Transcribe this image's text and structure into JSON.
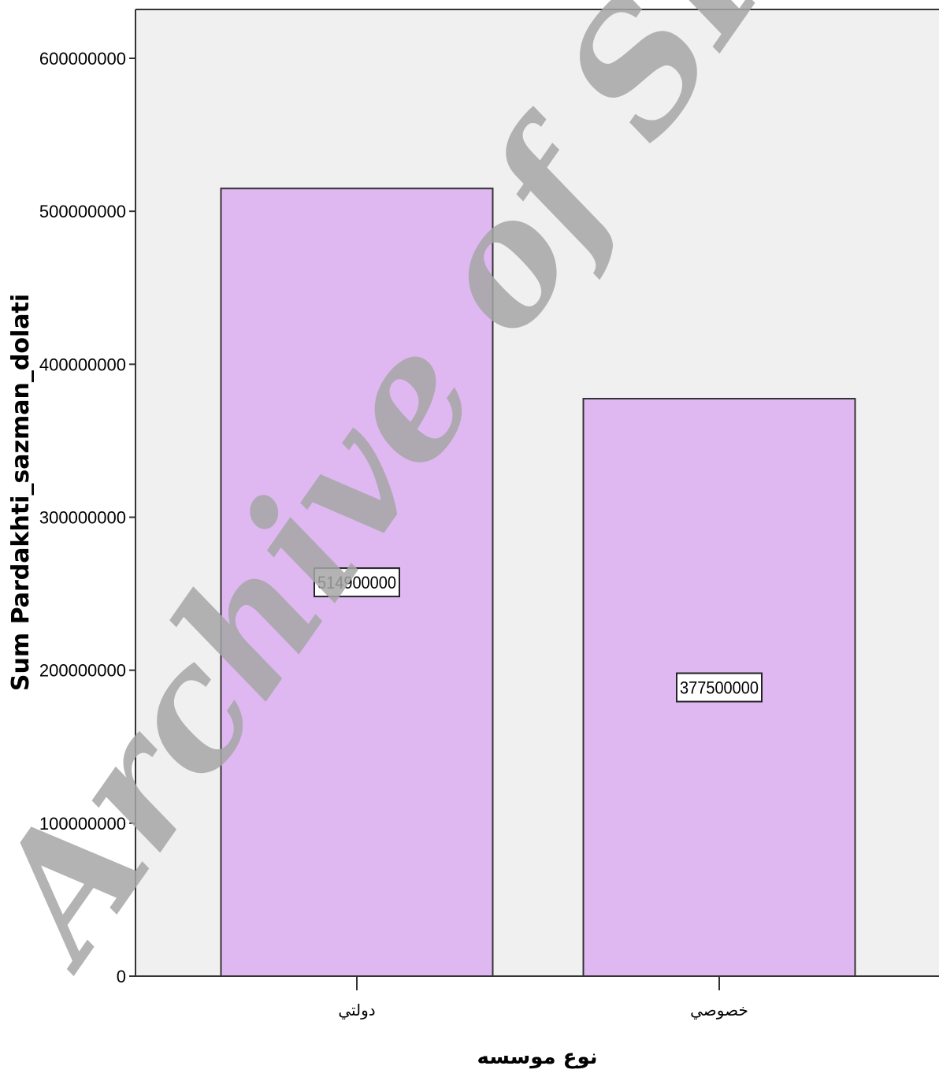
{
  "chart_data": {
    "type": "bar",
    "categories": [
      "دولتي",
      "خصوصي"
    ],
    "values": [
      514900000,
      377500000
    ],
    "data_labels": [
      "514900000",
      "377500000"
    ],
    "title": "",
    "xlabel": "نوع موسسه",
    "ylabel": "Sum Pardakhti_sazman_dolati",
    "ylim": [
      0,
      630000000
    ],
    "yticks": [
      0,
      100000000,
      200000000,
      300000000,
      400000000,
      500000000,
      600000000
    ],
    "ytick_labels": [
      "0",
      "100000000",
      "200000000",
      "300000000",
      "400000000",
      "500000000",
      "600000000"
    ],
    "grid": false,
    "colors": {
      "bar_fill": "#dfb8f2",
      "plot_background": "#f0f0f0",
      "bar_stroke": "#333333"
    }
  },
  "watermark": {
    "text": "Archive of SID"
  }
}
